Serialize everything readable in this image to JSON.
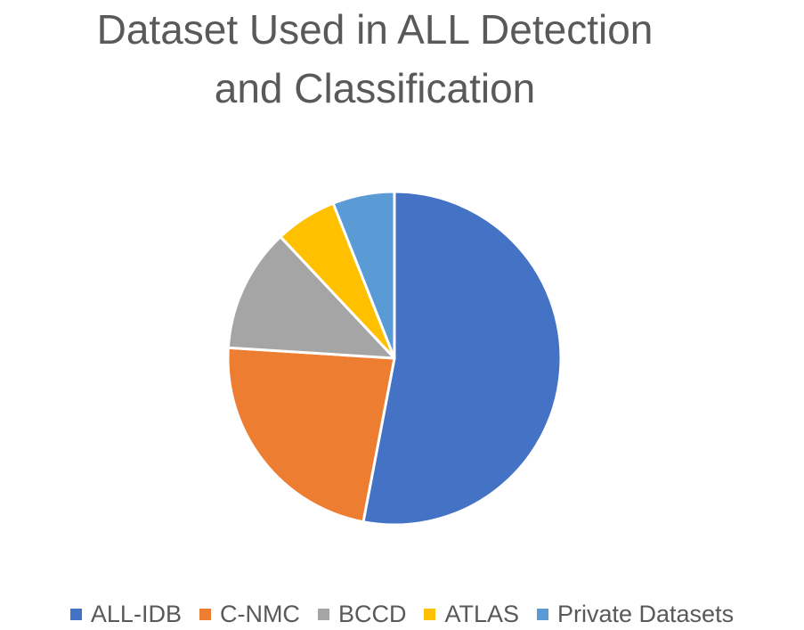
{
  "chart_data": {
    "type": "pie",
    "title_lines": [
      "Dataset Used in ALL Detection",
      "and Classification"
    ],
    "categories": [
      "ALL-IDB",
      "C-NMC",
      "BCCD",
      "ATLAS",
      "Private Datasets"
    ],
    "values": [
      53,
      23,
      12,
      6,
      6
    ],
    "colors": [
      "#4472C4",
      "#ED7D31",
      "#A5A5A5",
      "#FFC000",
      "#5B9BD5"
    ],
    "legend_position": "bottom",
    "start_angle_deg": 0,
    "direction": "clockwise"
  }
}
